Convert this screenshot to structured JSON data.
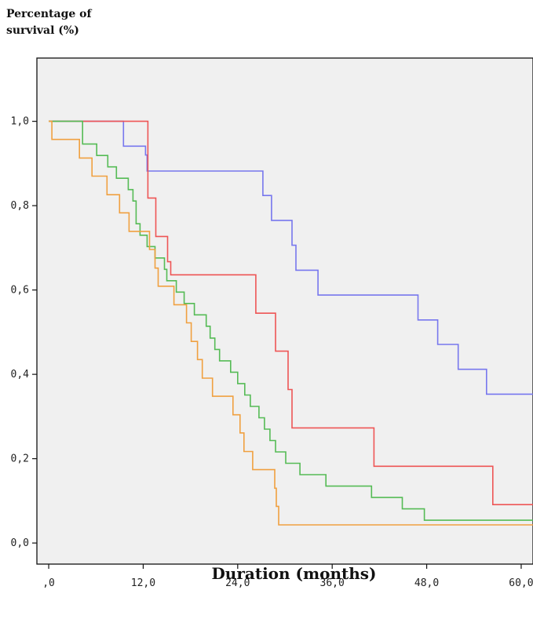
{
  "chart_data": {
    "type": "line",
    "ylabel": "Percentage of survival (%)",
    "xlabel": "Duration (months)",
    "xlim": [
      -1.5,
      61.5
    ],
    "ylim": [
      -0.05,
      1.15
    ],
    "x_ticks": [
      0,
      12,
      24,
      36,
      48,
      60
    ],
    "x_tick_labels": [
      ",0",
      "12,0",
      "24,0",
      "36,0",
      "48,0",
      "60,0"
    ],
    "y_ticks": [
      0,
      0.2,
      0.4,
      0.6,
      0.8,
      1.0
    ],
    "y_tick_labels": [
      "0,0",
      "0,2",
      "0,4",
      "0,6",
      "0,8",
      "1,0"
    ],
    "grid": false,
    "step": true,
    "series": [
      {
        "color": "#7777ee",
        "x": [
          0,
          9.5,
          12.3,
          12.5,
          27.2,
          28.3,
          30.9,
          31.4,
          34.2,
          46.9,
          49.4,
          52.0,
          55.6,
          61.5
        ],
        "y": [
          1.0,
          0.941,
          0.92,
          0.882,
          0.824,
          0.765,
          0.706,
          0.647,
          0.588,
          0.529,
          0.471,
          0.412,
          0.353,
          0.353
        ]
      },
      {
        "color": "#ee5555",
        "x": [
          0,
          12.6,
          13.6,
          15.1,
          15.5,
          26.3,
          28.8,
          30.4,
          30.9,
          41.3,
          56.4,
          61.5
        ],
        "y": [
          1.0,
          0.818,
          0.727,
          0.667,
          0.636,
          0.545,
          0.455,
          0.364,
          0.273,
          0.182,
          0.091,
          0.091
        ]
      },
      {
        "color": "#55bb55",
        "x": [
          0,
          4.3,
          6.1,
          7.5,
          8.6,
          10.1,
          10.7,
          11.1,
          11.6,
          12.5,
          13.5,
          14.7,
          15.0,
          16.2,
          17.2,
          18.5,
          20.0,
          20.5,
          21.1,
          21.7,
          23.1,
          24.0,
          24.9,
          25.6,
          26.7,
          27.4,
          28.1,
          28.8,
          30.1,
          31.9,
          35.2,
          41.0,
          44.9,
          47.7,
          51.1,
          55.3,
          61.5
        ],
        "y": [
          1.0,
          0.946,
          0.919,
          0.892,
          0.865,
          0.838,
          0.811,
          0.757,
          0.73,
          0.703,
          0.676,
          0.649,
          0.622,
          0.595,
          0.568,
          0.541,
          0.514,
          0.486,
          0.459,
          0.432,
          0.405,
          0.378,
          0.351,
          0.324,
          0.297,
          0.27,
          0.243,
          0.216,
          0.189,
          0.162,
          0.135,
          0.108,
          0.081,
          0.054,
          0.054,
          0.054,
          0.054
        ]
      },
      {
        "color": "#f0a040",
        "x": [
          0,
          0.4,
          3.9,
          5.5,
          7.4,
          9.0,
          10.2,
          12.8,
          13.5,
          13.9,
          15.9,
          17.5,
          18.1,
          18.9,
          19.5,
          20.8,
          23.4,
          24.3,
          24.8,
          25.9,
          28.7,
          28.9,
          29.2,
          32.5,
          61.5
        ],
        "y": [
          1.0,
          0.957,
          0.913,
          0.87,
          0.826,
          0.783,
          0.739,
          0.696,
          0.652,
          0.609,
          0.565,
          0.522,
          0.478,
          0.435,
          0.391,
          0.348,
          0.304,
          0.261,
          0.217,
          0.174,
          0.13,
          0.087,
          0.043,
          0.043,
          0.043
        ]
      }
    ]
  }
}
